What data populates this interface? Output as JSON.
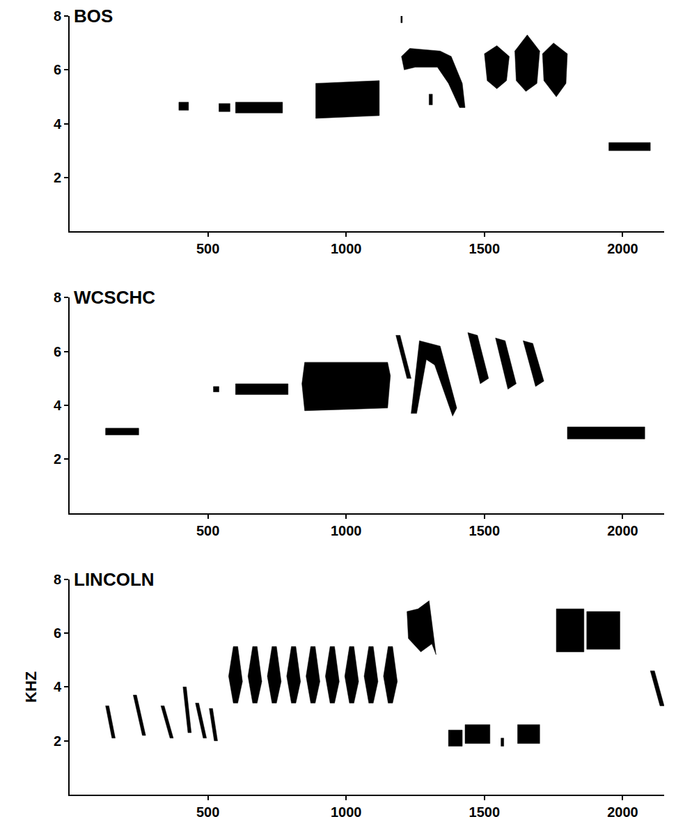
{
  "chart_data": [
    {
      "type": "spectrogram",
      "title": "BOS",
      "color": "#000000",
      "xlim": [
        0,
        2150
      ],
      "xticks": [
        500,
        1000,
        1500,
        2000
      ],
      "ylim": [
        0,
        8
      ],
      "yticks": [
        2,
        4,
        6,
        8
      ],
      "elements": [
        {
          "t": [
            395,
            430,
            430,
            395
          ],
          "f": [
            4.5,
            4.5,
            4.8,
            4.8
          ]
        },
        {
          "t": [
            540,
            580,
            580,
            540
          ],
          "f": [
            4.45,
            4.45,
            4.75,
            4.75
          ]
        },
        {
          "t": [
            600,
            770,
            770,
            600
          ],
          "f": [
            4.4,
            4.4,
            4.8,
            4.8
          ]
        },
        {
          "t": [
            890,
            1120,
            1120,
            890
          ],
          "f": [
            4.2,
            4.3,
            5.6,
            5.5
          ]
        },
        {
          "t": [
            1200,
            1230,
            1340,
            1380,
            1420,
            1430,
            1410,
            1370,
            1330,
            1250,
            1210
          ],
          "f": [
            6.5,
            6.8,
            6.7,
            6.5,
            5.5,
            4.6,
            4.6,
            5.5,
            6.1,
            6.1,
            6.0
          ]
        },
        {
          "t": [
            1300,
            1312,
            1312,
            1300
          ],
          "f": [
            4.7,
            4.7,
            5.1,
            5.1
          ]
        },
        {
          "t": [
            1500,
            1545,
            1590,
            1580,
            1545,
            1510
          ],
          "f": [
            6.6,
            6.9,
            6.5,
            5.6,
            5.3,
            5.6
          ]
        },
        {
          "t": [
            1610,
            1655,
            1700,
            1690,
            1650,
            1615
          ],
          "f": [
            6.7,
            7.3,
            6.7,
            5.5,
            5.2,
            5.6
          ]
        },
        {
          "t": [
            1710,
            1750,
            1800,
            1795,
            1760,
            1715
          ],
          "f": [
            6.6,
            7.0,
            6.6,
            5.5,
            5.0,
            5.6
          ]
        },
        {
          "t": [
            1950,
            2100,
            2100,
            1950
          ],
          "f": [
            3.0,
            3.0,
            3.3,
            3.3
          ]
        },
        {
          "t": [
            1198,
            1203,
            1203,
            1198
          ],
          "f": [
            7.75,
            7.75,
            8.0,
            8.0
          ]
        }
      ]
    },
    {
      "type": "spectrogram",
      "title": "WCSCHC",
      "color": "#000000",
      "xlim": [
        0,
        2150
      ],
      "xticks": [
        500,
        1000,
        1500,
        2000
      ],
      "ylim": [
        0,
        8
      ],
      "yticks": [
        2,
        4,
        6,
        8
      ],
      "elements": [
        {
          "t": [
            130,
            250,
            250,
            130
          ],
          "f": [
            2.9,
            2.9,
            3.15,
            3.15
          ]
        },
        {
          "t": [
            520,
            540,
            540,
            520
          ],
          "f": [
            4.5,
            4.5,
            4.7,
            4.7
          ]
        },
        {
          "t": [
            600,
            790,
            790,
            600
          ],
          "f": [
            4.4,
            4.4,
            4.8,
            4.8
          ]
        },
        {
          "t": [
            850,
            1150,
            1160,
            1150,
            850,
            840
          ],
          "f": [
            3.8,
            3.9,
            5.1,
            5.6,
            5.6,
            4.8
          ]
        },
        {
          "t": [
            1180,
            1195,
            1235,
            1220
          ],
          "f": [
            6.6,
            6.6,
            5.0,
            5.0
          ]
        },
        {
          "t": [
            1235,
            1265,
            1340,
            1400,
            1385,
            1320,
            1290,
            1255
          ],
          "f": [
            3.7,
            6.4,
            6.2,
            3.9,
            3.6,
            5.5,
            5.7,
            3.7
          ]
        },
        {
          "t": [
            1440,
            1475,
            1515,
            1485
          ],
          "f": [
            6.7,
            6.6,
            5.0,
            4.8
          ]
        },
        {
          "t": [
            1540,
            1575,
            1615,
            1585
          ],
          "f": [
            6.5,
            6.4,
            4.8,
            4.6
          ]
        },
        {
          "t": [
            1640,
            1675,
            1715,
            1685
          ],
          "f": [
            6.4,
            6.3,
            4.9,
            4.7
          ]
        },
        {
          "t": [
            1800,
            2080,
            2080,
            1800
          ],
          "f": [
            2.75,
            2.75,
            3.2,
            3.2
          ]
        }
      ]
    },
    {
      "type": "spectrogram",
      "title": "LINCOLN",
      "ylabel": "KHZ",
      "color": "#000000",
      "xlim": [
        0,
        2150
      ],
      "xticks": [
        500,
        1000,
        1500,
        2000
      ],
      "ylim": [
        0,
        8
      ],
      "yticks": [
        2,
        4,
        6,
        8
      ],
      "elements": [
        {
          "t": [
            130,
            142,
            165,
            153
          ],
          "f": [
            3.3,
            3.3,
            2.1,
            2.1
          ]
        },
        {
          "t": [
            230,
            242,
            275,
            263
          ],
          "f": [
            3.7,
            3.7,
            2.2,
            2.2
          ]
        },
        {
          "t": [
            330,
            342,
            375,
            363
          ],
          "f": [
            3.3,
            3.3,
            2.1,
            2.1
          ]
        },
        {
          "t": [
            410,
            422,
            440,
            428
          ],
          "f": [
            4.0,
            4.0,
            2.3,
            2.3
          ]
        },
        {
          "t": [
            455,
            467,
            495,
            483
          ],
          "f": [
            3.4,
            3.4,
            2.1,
            2.1
          ]
        },
        {
          "t": [
            505,
            517,
            535,
            523
          ],
          "f": [
            3.2,
            3.2,
            2.0,
            2.0
          ]
        },
        {
          "t": [
            575,
            592,
            608,
            625,
            608,
            592
          ],
          "f": [
            4.4,
            5.5,
            5.5,
            4.2,
            3.4,
            3.4
          ]
        },
        {
          "t": [
            645,
            662,
            678,
            695,
            678,
            662
          ],
          "f": [
            4.4,
            5.5,
            5.5,
            4.2,
            3.4,
            3.4
          ]
        },
        {
          "t": [
            715,
            732,
            748,
            765,
            748,
            732
          ],
          "f": [
            4.4,
            5.5,
            5.5,
            4.2,
            3.4,
            3.4
          ]
        },
        {
          "t": [
            785,
            802,
            818,
            835,
            818,
            802
          ],
          "f": [
            4.4,
            5.5,
            5.5,
            4.2,
            3.4,
            3.4
          ]
        },
        {
          "t": [
            855,
            872,
            888,
            905,
            888,
            872
          ],
          "f": [
            4.4,
            5.5,
            5.5,
            4.2,
            3.4,
            3.4
          ]
        },
        {
          "t": [
            925,
            942,
            958,
            975,
            958,
            942
          ],
          "f": [
            4.4,
            5.5,
            5.5,
            4.2,
            3.4,
            3.4
          ]
        },
        {
          "t": [
            995,
            1012,
            1028,
            1045,
            1028,
            1012
          ],
          "f": [
            4.4,
            5.5,
            5.5,
            4.2,
            3.4,
            3.4
          ]
        },
        {
          "t": [
            1065,
            1082,
            1098,
            1115,
            1098,
            1082
          ],
          "f": [
            4.4,
            5.5,
            5.5,
            4.2,
            3.4,
            3.4
          ]
        },
        {
          "t": [
            1135,
            1152,
            1168,
            1185,
            1168,
            1152
          ],
          "f": [
            4.4,
            5.5,
            5.5,
            4.2,
            3.4,
            3.4
          ]
        },
        {
          "t": [
            1220,
            1260,
            1300,
            1325,
            1310,
            1270,
            1225
          ],
          "f": [
            6.8,
            6.9,
            7.2,
            5.2,
            5.6,
            5.3,
            5.8
          ]
        },
        {
          "t": [
            1370,
            1420,
            1420,
            1370
          ],
          "f": [
            1.8,
            1.8,
            2.4,
            2.4
          ]
        },
        {
          "t": [
            1430,
            1520,
            1520,
            1430
          ],
          "f": [
            1.9,
            1.9,
            2.6,
            2.6
          ]
        },
        {
          "t": [
            1560,
            1570,
            1570,
            1560
          ],
          "f": [
            1.8,
            1.8,
            2.1,
            2.1
          ]
        },
        {
          "t": [
            1620,
            1700,
            1700,
            1620
          ],
          "f": [
            1.9,
            1.9,
            2.6,
            2.6
          ]
        },
        {
          "t": [
            1760,
            1860,
            1860,
            1760
          ],
          "f": [
            5.3,
            5.3,
            6.9,
            6.9
          ]
        },
        {
          "t": [
            1870,
            1990,
            1990,
            1870
          ],
          "f": [
            5.4,
            5.4,
            6.8,
            6.8
          ]
        },
        {
          "t": [
            2100,
            2115,
            2150,
            2135
          ],
          "f": [
            4.6,
            4.6,
            3.3,
            3.3
          ]
        }
      ]
    }
  ]
}
